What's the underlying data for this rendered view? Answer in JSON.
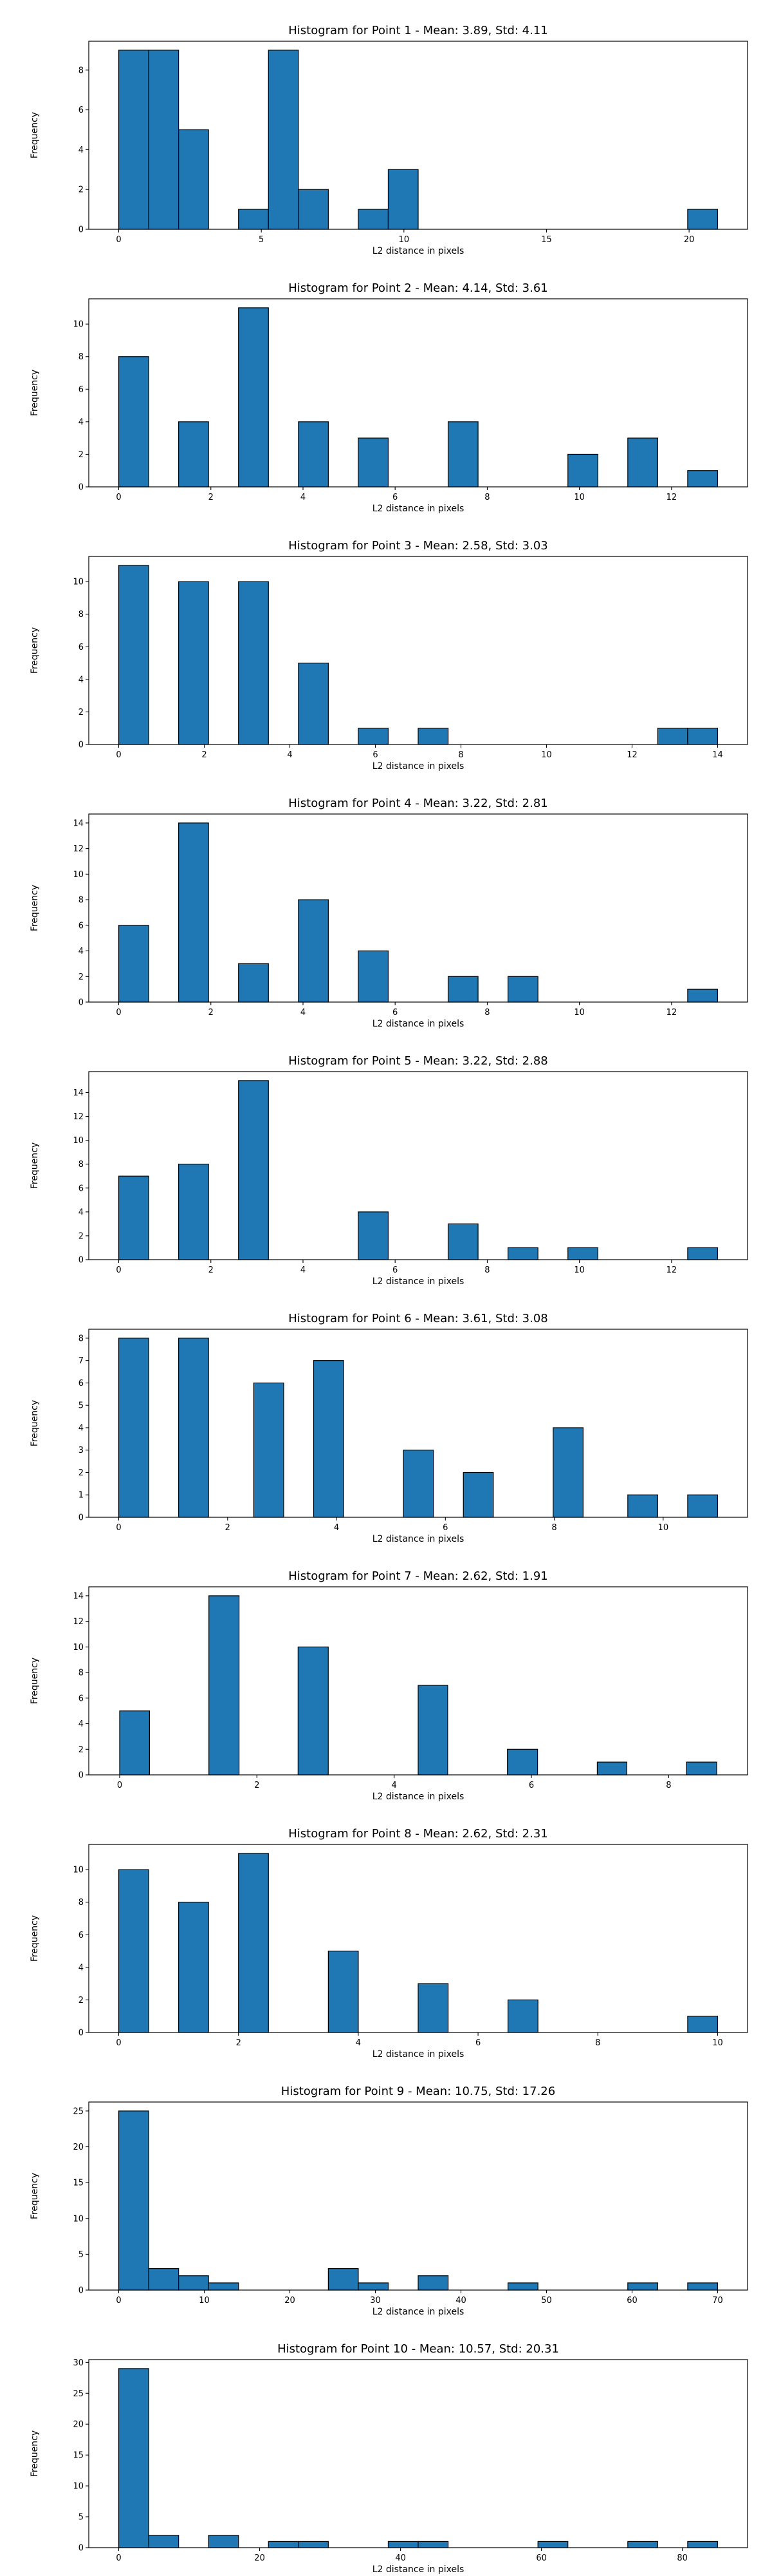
{
  "chart_data": [
    {
      "type": "bar",
      "title": "Histogram for Point 1 - Mean: 3.89, Std: 4.11",
      "xlabel": "L2 distance in pixels",
      "ylabel": "Frequency",
      "xlim": [
        -1.05,
        22.05
      ],
      "ylim": [
        0,
        9.45
      ],
      "xticks": [
        0,
        5,
        10,
        15,
        20
      ],
      "yticks": [
        0,
        2,
        4,
        6,
        8
      ],
      "grid": false,
      "bins": [
        [
          0,
          1.05,
          9
        ],
        [
          1.05,
          2.1,
          9
        ],
        [
          2.1,
          3.15,
          5
        ],
        [
          4.2,
          5.25,
          1
        ],
        [
          5.25,
          6.3,
          9
        ],
        [
          6.3,
          7.35,
          2
        ],
        [
          8.4,
          9.45,
          1
        ],
        [
          9.45,
          10.5,
          3
        ],
        [
          19.95,
          21.0,
          1
        ]
      ]
    },
    {
      "type": "bar",
      "title": "Histogram for Point 2 - Mean: 4.14, Std: 3.61",
      "xlabel": "L2 distance in pixels",
      "ylabel": "Frequency",
      "xlim": [
        -0.65,
        13.65
      ],
      "ylim": [
        0,
        11.55
      ],
      "xticks": [
        0,
        2,
        4,
        6,
        8,
        10,
        12
      ],
      "yticks": [
        0,
        2,
        4,
        6,
        8,
        10
      ],
      "grid": false,
      "bins": [
        [
          0,
          0.65,
          8
        ],
        [
          1.3,
          1.95,
          4
        ],
        [
          2.6,
          3.25,
          11
        ],
        [
          3.9,
          4.55,
          4
        ],
        [
          5.2,
          5.85,
          3
        ],
        [
          7.15,
          7.8,
          4
        ],
        [
          9.75,
          10.4,
          2
        ],
        [
          11.05,
          11.7,
          3
        ],
        [
          12.35,
          13.0,
          1
        ]
      ]
    },
    {
      "type": "bar",
      "title": "Histogram for Point 3 - Mean: 2.58, Std: 3.03",
      "xlabel": "L2 distance in pixels",
      "ylabel": "Frequency",
      "xlim": [
        -0.7,
        14.7
      ],
      "ylim": [
        0,
        11.55
      ],
      "xticks": [
        0,
        2,
        4,
        6,
        8,
        10,
        12,
        14
      ],
      "yticks": [
        0,
        2,
        4,
        6,
        8,
        10
      ],
      "grid": false,
      "bins": [
        [
          0,
          0.7,
          11
        ],
        [
          1.4,
          2.1,
          10
        ],
        [
          2.8,
          3.5,
          10
        ],
        [
          4.2,
          4.9,
          5
        ],
        [
          5.6,
          6.3,
          1
        ],
        [
          7.0,
          7.7,
          1
        ],
        [
          12.6,
          13.3,
          1
        ],
        [
          13.3,
          14.0,
          1
        ]
      ]
    },
    {
      "type": "bar",
      "title": "Histogram for Point 4 - Mean: 3.22, Std: 2.81",
      "xlabel": "L2 distance in pixels",
      "ylabel": "Frequency",
      "xlim": [
        -0.65,
        13.65
      ],
      "ylim": [
        0,
        14.7
      ],
      "xticks": [
        0,
        2,
        4,
        6,
        8,
        10,
        12
      ],
      "yticks": [
        0,
        2,
        4,
        6,
        8,
        10,
        12,
        14
      ],
      "grid": false,
      "bins": [
        [
          0,
          0.65,
          6
        ],
        [
          1.3,
          1.95,
          14
        ],
        [
          2.6,
          3.25,
          3
        ],
        [
          3.9,
          4.55,
          8
        ],
        [
          5.2,
          5.85,
          4
        ],
        [
          7.15,
          7.8,
          2
        ],
        [
          8.45,
          9.1,
          2
        ],
        [
          12.35,
          13.0,
          1
        ]
      ]
    },
    {
      "type": "bar",
      "title": "Histogram for Point 5 - Mean: 3.22, Std: 2.88",
      "xlabel": "L2 distance in pixels",
      "ylabel": "Frequency",
      "xlim": [
        -0.65,
        13.65
      ],
      "ylim": [
        0,
        15.75
      ],
      "xticks": [
        0,
        2,
        4,
        6,
        8,
        10,
        12
      ],
      "yticks": [
        0,
        2,
        4,
        6,
        8,
        10,
        12,
        14
      ],
      "grid": false,
      "bins": [
        [
          0,
          0.65,
          7
        ],
        [
          1.3,
          1.95,
          8
        ],
        [
          2.6,
          3.25,
          15
        ],
        [
          5.2,
          5.85,
          4
        ],
        [
          7.15,
          7.8,
          3
        ],
        [
          8.45,
          9.1,
          1
        ],
        [
          9.75,
          10.4,
          1
        ],
        [
          12.35,
          13.0,
          1
        ]
      ]
    },
    {
      "type": "bar",
      "title": "Histogram for Point 6 - Mean: 3.61, Std: 3.08",
      "xlabel": "L2 distance in pixels",
      "ylabel": "Frequency",
      "xlim": [
        -0.55,
        11.55
      ],
      "ylim": [
        0,
        8.4
      ],
      "xticks": [
        0,
        2,
        4,
        6,
        8,
        10
      ],
      "yticks": [
        0,
        1,
        2,
        3,
        4,
        5,
        6,
        7,
        8
      ],
      "grid": false,
      "bins": [
        [
          0,
          0.55,
          8
        ],
        [
          1.1,
          1.65,
          8
        ],
        [
          2.48,
          3.03,
          6
        ],
        [
          3.58,
          4.13,
          7
        ],
        [
          5.23,
          5.78,
          3
        ],
        [
          6.33,
          6.88,
          2
        ],
        [
          7.98,
          8.53,
          4
        ],
        [
          9.35,
          9.9,
          1
        ],
        [
          10.45,
          11.0,
          1
        ]
      ]
    },
    {
      "type": "bar",
      "title": "Histogram for Point 7 - Mean: 2.62, Std: 1.91",
      "xlabel": "L2 distance in pixels",
      "ylabel": "Frequency",
      "xlim": [
        -0.45,
        9.15
      ],
      "ylim": [
        0,
        14.7
      ],
      "xticks": [
        0,
        2,
        4,
        6,
        8
      ],
      "yticks": [
        0,
        2,
        4,
        6,
        8,
        10,
        12,
        14
      ],
      "grid": false,
      "bins": [
        [
          0,
          0.435,
          5
        ],
        [
          1.3,
          1.74,
          14
        ],
        [
          2.6,
          3.04,
          10
        ],
        [
          4.35,
          4.78,
          7
        ],
        [
          5.65,
          6.09,
          2
        ],
        [
          6.96,
          7.39,
          1
        ],
        [
          8.26,
          8.7,
          1
        ]
      ]
    },
    {
      "type": "bar",
      "title": "Histogram for Point 8 - Mean: 2.62, Std: 2.31",
      "xlabel": "L2 distance in pixels",
      "ylabel": "Frequency",
      "xlim": [
        -0.5,
        10.5
      ],
      "ylim": [
        0,
        11.55
      ],
      "xticks": [
        0,
        2,
        4,
        6,
        8,
        10
      ],
      "yticks": [
        0,
        2,
        4,
        6,
        8,
        10
      ],
      "grid": false,
      "bins": [
        [
          0,
          0.5,
          10
        ],
        [
          1.0,
          1.5,
          8
        ],
        [
          2.0,
          2.5,
          11
        ],
        [
          3.5,
          4.0,
          5
        ],
        [
          5.0,
          5.5,
          3
        ],
        [
          6.5,
          7.0,
          2
        ],
        [
          9.5,
          10.0,
          1
        ]
      ]
    },
    {
      "type": "bar",
      "title": "Histogram for Point 9 - Mean: 10.75, Std: 17.26",
      "xlabel": "L2 distance in pixels",
      "ylabel": "Frequency",
      "xlim": [
        -3.5,
        73.5
      ],
      "ylim": [
        0,
        26.25
      ],
      "xticks": [
        0,
        10,
        20,
        30,
        40,
        50,
        60,
        70
      ],
      "yticks": [
        0,
        5,
        10,
        15,
        20,
        25
      ],
      "grid": false,
      "bins": [
        [
          0,
          3.5,
          25
        ],
        [
          3.5,
          7.0,
          3
        ],
        [
          7.0,
          10.5,
          2
        ],
        [
          10.5,
          14.0,
          1
        ],
        [
          24.5,
          28.0,
          3
        ],
        [
          28.0,
          31.5,
          1
        ],
        [
          35.0,
          38.5,
          2
        ],
        [
          45.5,
          49.0,
          1
        ],
        [
          59.5,
          63.0,
          1
        ],
        [
          66.5,
          70.0,
          1
        ]
      ]
    },
    {
      "type": "bar",
      "title": "Histogram for Point 10 - Mean: 10.57, Std: 20.31",
      "xlabel": "L2 distance in pixels",
      "ylabel": "Frequency",
      "xlim": [
        -4.25,
        89.25
      ],
      "ylim": [
        0,
        30.45
      ],
      "xticks": [
        0,
        20,
        40,
        60,
        80
      ],
      "yticks": [
        0,
        5,
        10,
        15,
        20,
        25,
        30
      ],
      "grid": false,
      "bins": [
        [
          0,
          4.25,
          29
        ],
        [
          4.25,
          8.5,
          2
        ],
        [
          12.75,
          17.0,
          2
        ],
        [
          21.25,
          25.5,
          1
        ],
        [
          25.5,
          29.75,
          1
        ],
        [
          38.25,
          42.5,
          1
        ],
        [
          42.5,
          46.75,
          1
        ],
        [
          59.5,
          63.75,
          1
        ],
        [
          72.25,
          76.5,
          1
        ],
        [
          80.75,
          85.0,
          1
        ]
      ]
    }
  ]
}
